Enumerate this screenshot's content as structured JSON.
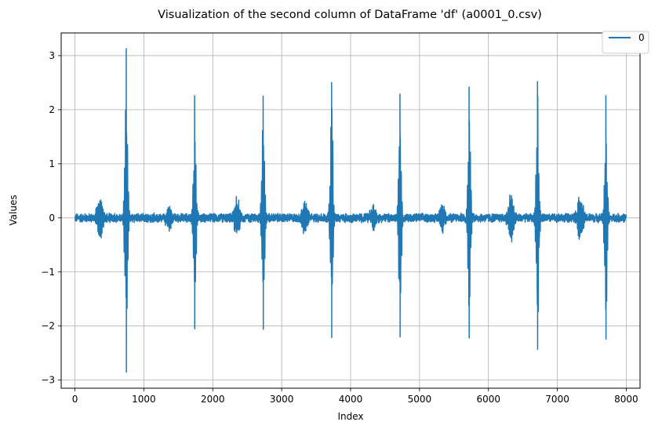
{
  "chart_data": {
    "type": "line",
    "title": "Visualization of the second column of DataFrame 'df' (a0001_0.csv)",
    "xlabel": "Index",
    "ylabel": "Values",
    "xlim": [
      -200,
      8200
    ],
    "ylim": [
      -3.15,
      3.42
    ],
    "x_ticks": [
      0,
      1000,
      2000,
      3000,
      4000,
      5000,
      6000,
      7000,
      8000
    ],
    "x_tick_labels": [
      "0",
      "1000",
      "2000",
      "3000",
      "4000",
      "5000",
      "6000",
      "7000",
      "8000"
    ],
    "y_ticks": [
      -3,
      -2,
      -1,
      0,
      1,
      2,
      3
    ],
    "y_tick_labels": [
      "−3",
      "−2",
      "−1",
      "0",
      "1",
      "2",
      "3"
    ],
    "grid": true,
    "legend_position": "top-right",
    "series": [
      {
        "name": "0",
        "color": "#1f77b4",
        "x_range": [
          0,
          7999
        ],
        "baseline_noise_amplitude": 0.07,
        "beats": [
          {
            "x": 745,
            "peak": 3.13,
            "trough": -2.85
          },
          {
            "x": 1737,
            "peak": 2.26,
            "trough": -2.05
          },
          {
            "x": 2732,
            "peak": 2.25,
            "trough": -2.06
          },
          {
            "x": 3725,
            "peak": 2.5,
            "trough": -2.21
          },
          {
            "x": 4717,
            "peak": 2.29,
            "trough": -2.2
          },
          {
            "x": 5720,
            "peak": 2.42,
            "trough": -2.22
          },
          {
            "x": 6713,
            "peak": 2.52,
            "trough": -2.43
          },
          {
            "x": 7705,
            "peak": 2.26,
            "trough": -2.24
          }
        ],
        "secondary_bursts": [
          {
            "x": 360,
            "amplitude": 0.45
          },
          {
            "x": 1360,
            "amplitude": 0.22
          },
          {
            "x": 2350,
            "amplitude": 0.36
          },
          {
            "x": 3330,
            "amplitude": 0.34
          },
          {
            "x": 4330,
            "amplitude": 0.24
          },
          {
            "x": 5330,
            "amplitude": 0.3
          },
          {
            "x": 6330,
            "amplitude": 0.48
          },
          {
            "x": 7330,
            "amplitude": 0.42
          }
        ]
      }
    ]
  }
}
